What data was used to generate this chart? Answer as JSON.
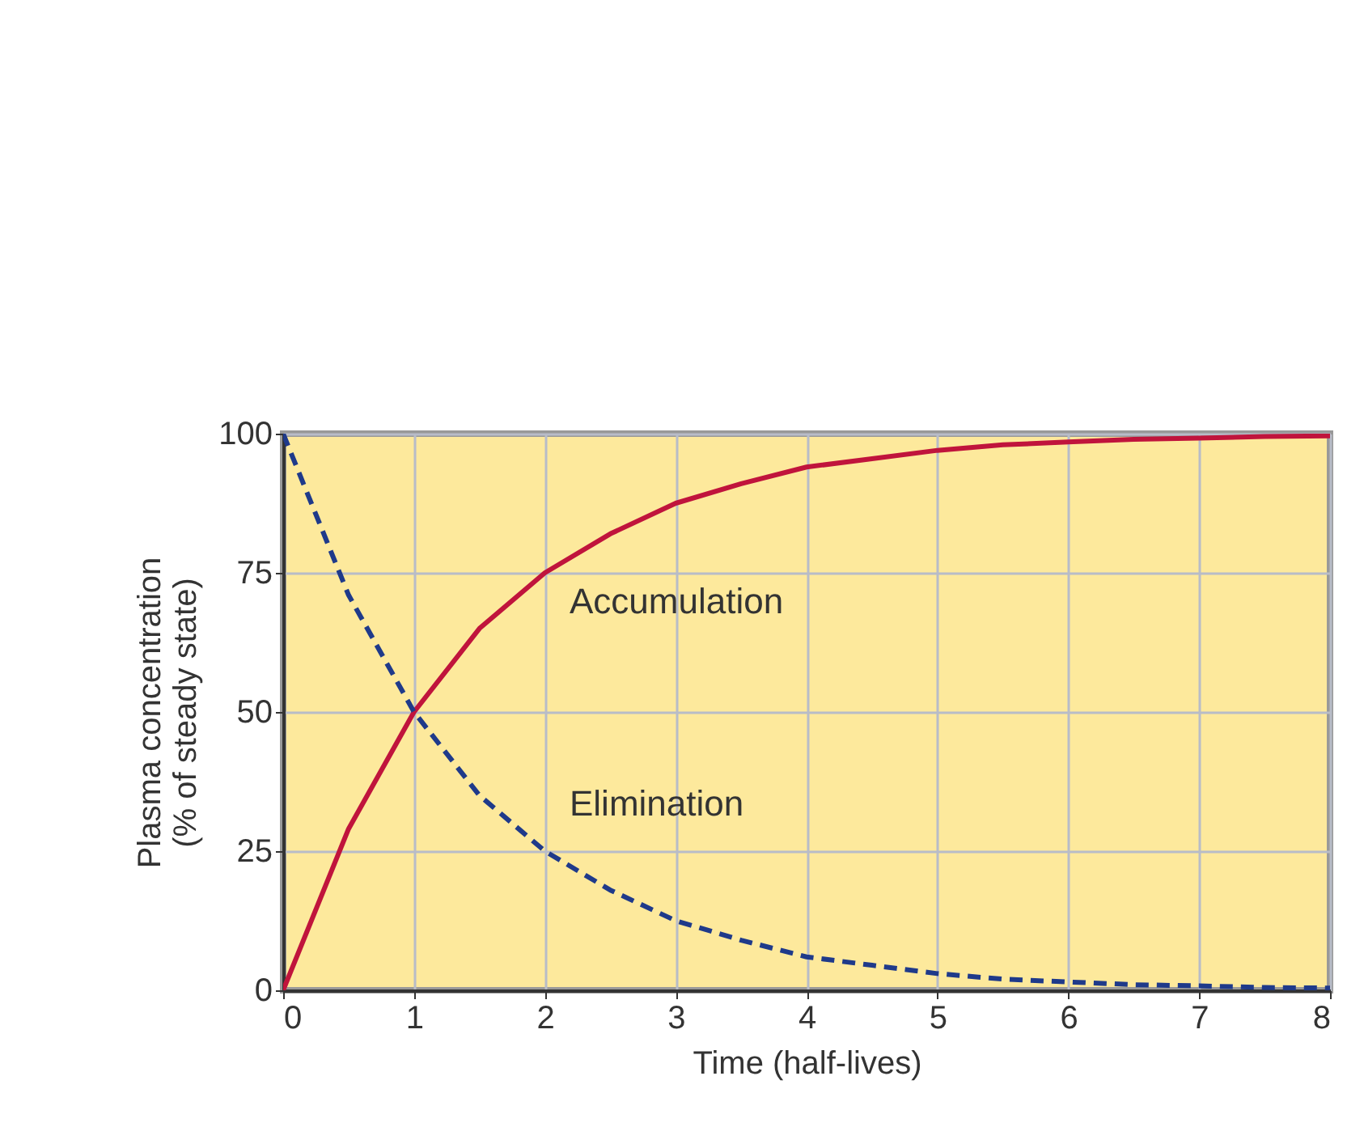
{
  "chart_data": {
    "type": "line",
    "xlabel": "Time (half-lives)",
    "ylabel": "Plasma concentration\n(% of steady state)",
    "x": [
      0,
      0.5,
      1,
      1.5,
      2,
      2.5,
      3,
      3.5,
      4,
      4.5,
      5,
      5.5,
      6,
      6.5,
      7,
      7.5,
      8
    ],
    "series": [
      {
        "name": "Accumulation",
        "color": "#c0143c",
        "line_style": "solid",
        "values": [
          0,
          29,
          50,
          65,
          75,
          82,
          87.5,
          91,
          94,
          95.5,
          97,
          98,
          98.5,
          99,
          99.2,
          99.5,
          99.6
        ]
      },
      {
        "name": "Elimination",
        "color": "#1f3a8a",
        "line_style": "dashed",
        "values": [
          100,
          71,
          50,
          35,
          25,
          18,
          12.5,
          9,
          6,
          4.5,
          3,
          2,
          1.5,
          1,
          0.8,
          0.5,
          0.4
        ]
      }
    ],
    "xlim": [
      0,
      8
    ],
    "xticks": [
      0,
      1,
      2,
      3,
      4,
      5,
      6,
      7,
      8
    ],
    "ylim": [
      0,
      100
    ],
    "yticks": [
      0,
      25,
      50,
      75,
      100
    ],
    "grid": true,
    "marker": "none"
  }
}
